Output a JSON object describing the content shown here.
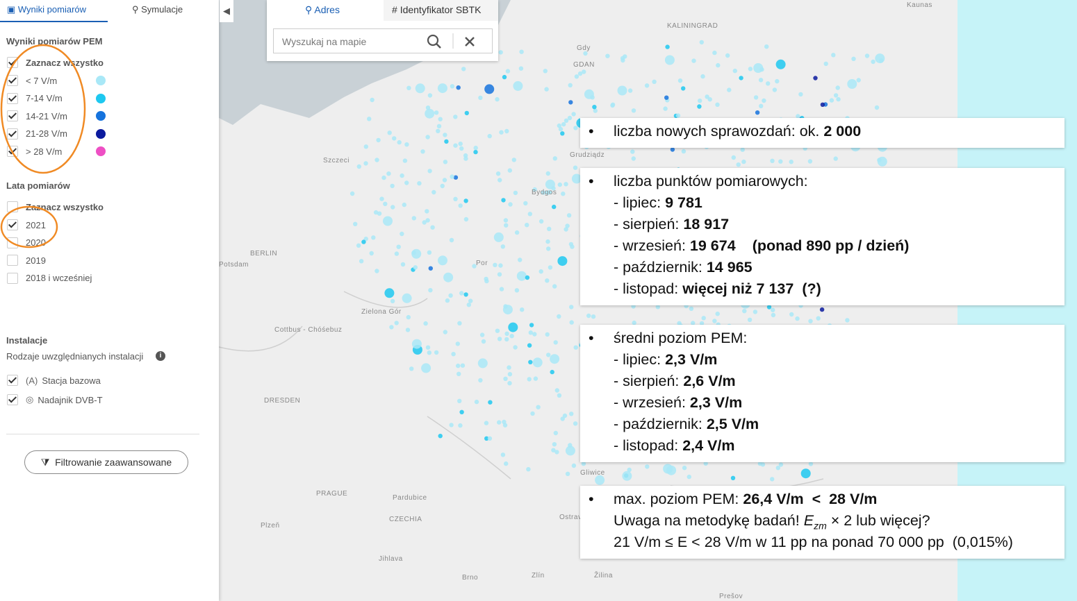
{
  "sidebar": {
    "tabs": [
      "Wyniki pomiarów",
      "Symulacje"
    ],
    "pem": {
      "title": "Wyniki pomiarów PEM",
      "select_all": {
        "label": "Zaznacz wszystko",
        "checked": true
      },
      "ranges": [
        {
          "label": "< 7 V/m",
          "color": "#a9e8f7",
          "checked": true
        },
        {
          "label": "7-14 V/m",
          "color": "#1ec8f0",
          "checked": true
        },
        {
          "label": "14-21 V/m",
          "color": "#1673dd",
          "checked": true
        },
        {
          "label": "21-28 V/m",
          "color": "#0b1a9e",
          "checked": true
        },
        {
          "label": "> 28 V/m",
          "color": "#ee4fc4",
          "checked": true
        }
      ]
    },
    "years": {
      "title": "Lata pomiarów",
      "select_all": {
        "label": "Zaznacz wszystko",
        "checked": false
      },
      "items": [
        {
          "label": "2021",
          "checked": true
        },
        {
          "label": "2020",
          "checked": false
        },
        {
          "label": "2019",
          "checked": false
        },
        {
          "label": "2018 i wcześniej",
          "checked": false
        }
      ]
    },
    "installations": {
      "title": "Instalacje",
      "subtitle": "Rodzaje uwzględnianych instalacji",
      "items": [
        {
          "label": "Stacja bazowa",
          "checked": true
        },
        {
          "label": "Nadajnik DVB-T",
          "checked": true
        }
      ]
    },
    "filter_button": "Filtrowanie zaawansowane"
  },
  "search": {
    "tabs": [
      "Adres",
      "Identyfikator SBTK"
    ],
    "placeholder": "Wyszukaj na mapie"
  },
  "map_labels": [
    "KALININGRAD",
    "Kaunas",
    "GDAN",
    "Gdy",
    "Szczeci",
    "Bydgos",
    "Grudziądz",
    "BERLIN",
    "Potsdam",
    "Zielona Gór",
    "Cottbus - Chóśebuz",
    "Por",
    "DRESDEN",
    "PRAGUE",
    "Plzeň",
    "CZECHIA",
    "Pardubice",
    "Jihlava",
    "Brno",
    "Zlín",
    "Žilina",
    "Ostrav",
    "Gliwice",
    "Prešov"
  ],
  "info_boxes": [
    {
      "lines": [
        [
          {
            "text": "liczba nowych sprawozdań: ok. ",
            "bold": false
          },
          {
            "text": "2 000",
            "bold": true
          }
        ]
      ]
    },
    {
      "lines": [
        [
          {
            "text": "liczba punktów pomiarowych:",
            "bold": false
          }
        ],
        [
          {
            "text": "- lipiec: ",
            "bold": false
          },
          {
            "text": "9 781",
            "bold": true
          }
        ],
        [
          {
            "text": "- sierpień: ",
            "bold": false
          },
          {
            "text": "18 917",
            "bold": true
          }
        ],
        [
          {
            "text": "- wrzesień: ",
            "bold": false
          },
          {
            "text": "19 674",
            "bold": true
          },
          {
            "text": "(ponad 890 pp / dzień)",
            "bold": true
          }
        ],
        [
          {
            "text": "- październik: ",
            "bold": false
          },
          {
            "text": "14 965",
            "bold": true
          }
        ],
        [
          {
            "text": "- listopad: ",
            "bold": false
          },
          {
            "text": "więcej niż 7 137",
            "bold": true
          },
          {
            "text": "(?)",
            "bold": true
          }
        ]
      ]
    },
    {
      "lines": [
        [
          {
            "text": "średni poziom PEM:",
            "bold": false
          }
        ],
        [
          {
            "text": "- lipiec: ",
            "bold": false
          },
          {
            "text": "2,3 V/m",
            "bold": true
          }
        ],
        [
          {
            "text": "- sierpień: ",
            "bold": false
          },
          {
            "text": "2,6 V/m",
            "bold": true
          }
        ],
        [
          {
            "text": "- wrzesień: ",
            "bold": false
          },
          {
            "text": "2,3 V/m",
            "bold": true
          }
        ],
        [
          {
            "text": "- październik: ",
            "bold": false
          },
          {
            "text": "2,5 V/m",
            "bold": true
          }
        ],
        [
          {
            "text": "- listopad: ",
            "bold": false
          },
          {
            "text": "2,4 V/m",
            "bold": true
          }
        ]
      ]
    },
    {
      "lines": [
        [
          {
            "text": "max. poziom PEM: ",
            "bold": false
          },
          {
            "text": "26,4 V/m  <  28 V/m",
            "bold": true
          }
        ],
        [
          {
            "text": "Uwaga na metodykę badań! ",
            "bold": false
          },
          {
            "text": "E",
            "italic": true
          },
          {
            "text": "zm",
            "italic": true,
            "sub": true
          },
          {
            "text": " × 2 lub więcej?",
            "bold": false
          }
        ],
        [
          {
            "text": "21 V/m ≤ E < 28 V/m w 11 pp na ponad 70 000 pp  (0,015%)",
            "bold": false
          }
        ]
      ]
    }
  ]
}
